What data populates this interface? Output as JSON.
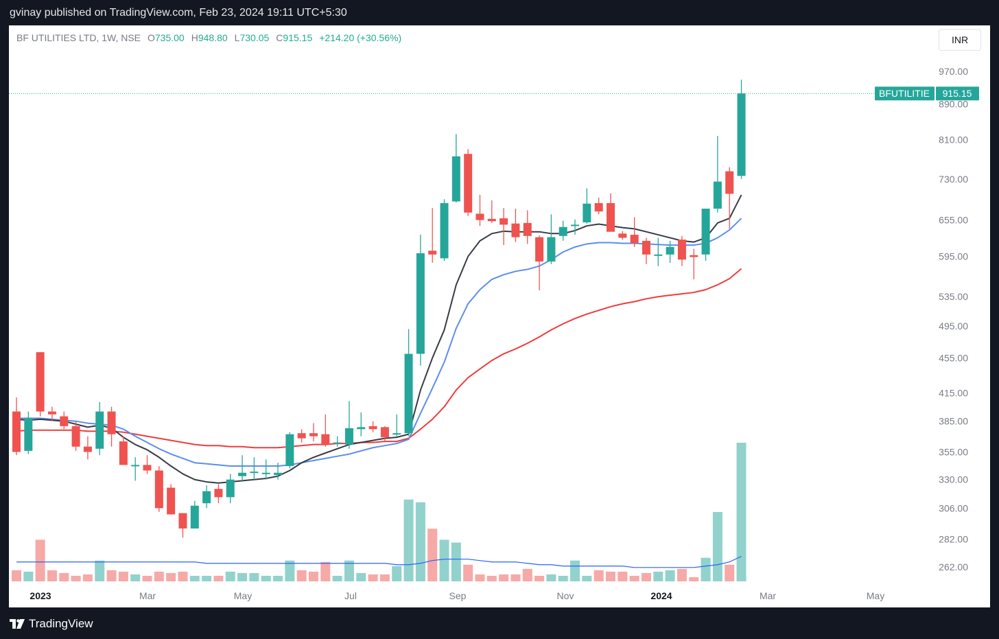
{
  "header": {
    "published": "gvinay published on TradingView.com, Feb 23, 2024 19:11 UTC+5:30"
  },
  "legend": {
    "symbol": "BF UTILITIES LTD, 1W, NSE",
    "o_label": "O",
    "o_value": "735.00",
    "h_label": "H",
    "h_value": "948.80",
    "l_label": "L",
    "l_value": "730.05",
    "c_label": "C",
    "c_value": "915.15",
    "change": "+214.20 (+30.56%)"
  },
  "currency_button": "INR",
  "price_tag": {
    "symbol": "BFUTILITIE",
    "value": "915.15"
  },
  "footer": {
    "brand": "TradingView"
  },
  "colors": {
    "up": "#26a69a",
    "down": "#ef5350",
    "ema_fast": "#363a45",
    "ema_mid": "#5b8def",
    "ema_slow": "#ef3b3b",
    "vol_ma": "#2962ff",
    "vol_up": "#92d2cc",
    "vol_down": "#f7a9a7"
  },
  "chart_data": {
    "type": "candlestick",
    "y_axis_ticks": [
      "970.00",
      "890.00",
      "810.00",
      "730.00",
      "655.00",
      "595.00",
      "535.00",
      "495.00",
      "455.00",
      "415.00",
      "385.00",
      "355.00",
      "330.00",
      "306.00",
      "282.00",
      "262.00"
    ],
    "y_scale": "log",
    "x_axis_labels": [
      "2023",
      "Mar",
      "May",
      "Jul",
      "Sep",
      "Nov",
      "2024",
      "Mar",
      "May"
    ],
    "x_axis_bold": [
      "2023",
      "2024"
    ],
    "candles": [
      {
        "o": 395,
        "h": 410,
        "l": 352,
        "c": 355
      },
      {
        "o": 356,
        "h": 395,
        "l": 353,
        "c": 388
      },
      {
        "o": 462,
        "h": 462,
        "l": 390,
        "c": 395
      },
      {
        "o": 395,
        "h": 400,
        "l": 385,
        "c": 392
      },
      {
        "o": 390,
        "h": 395,
        "l": 377,
        "c": 380
      },
      {
        "o": 380,
        "h": 385,
        "l": 356,
        "c": 360
      },
      {
        "o": 360,
        "h": 370,
        "l": 348,
        "c": 355
      },
      {
        "o": 358,
        "h": 405,
        "l": 352,
        "c": 395
      },
      {
        "o": 395,
        "h": 400,
        "l": 360,
        "c": 372
      },
      {
        "o": 365,
        "h": 370,
        "l": 343,
        "c": 343
      },
      {
        "o": 343,
        "h": 350,
        "l": 329,
        "c": 343
      },
      {
        "o": 343,
        "h": 352,
        "l": 335,
        "c": 338
      },
      {
        "o": 338,
        "h": 342,
        "l": 303,
        "c": 306
      },
      {
        "o": 323,
        "h": 326,
        "l": 301,
        "c": 301
      },
      {
        "o": 302,
        "h": 302,
        "l": 283,
        "c": 290
      },
      {
        "o": 290,
        "h": 312,
        "l": 290,
        "c": 308
      },
      {
        "o": 310,
        "h": 325,
        "l": 306,
        "c": 320
      },
      {
        "o": 322,
        "h": 326,
        "l": 310,
        "c": 315
      },
      {
        "o": 315,
        "h": 335,
        "l": 310,
        "c": 330
      },
      {
        "o": 333,
        "h": 352,
        "l": 328,
        "c": 336
      },
      {
        "o": 336,
        "h": 350,
        "l": 330,
        "c": 337
      },
      {
        "o": 336,
        "h": 348,
        "l": 330,
        "c": 336
      },
      {
        "o": 334,
        "h": 345,
        "l": 330,
        "c": 336
      },
      {
        "o": 342,
        "h": 374,
        "l": 340,
        "c": 372
      },
      {
        "o": 373,
        "h": 377,
        "l": 364,
        "c": 368
      },
      {
        "o": 373,
        "h": 383,
        "l": 365,
        "c": 370
      },
      {
        "o": 372,
        "h": 392,
        "l": 360,
        "c": 362
      },
      {
        "o": 364,
        "h": 370,
        "l": 360,
        "c": 364
      },
      {
        "o": 362,
        "h": 406,
        "l": 358,
        "c": 378
      },
      {
        "o": 377,
        "h": 394,
        "l": 370,
        "c": 379
      },
      {
        "o": 380,
        "h": 385,
        "l": 374,
        "c": 377
      },
      {
        "o": 379,
        "h": 380,
        "l": 365,
        "c": 369
      },
      {
        "o": 372,
        "h": 392,
        "l": 370,
        "c": 373
      },
      {
        "o": 373,
        "h": 491,
        "l": 370,
        "c": 460
      },
      {
        "o": 460,
        "h": 630,
        "l": 446,
        "c": 600
      },
      {
        "o": 604,
        "h": 676,
        "l": 585,
        "c": 598
      },
      {
        "o": 592,
        "h": 692,
        "l": 588,
        "c": 685
      },
      {
        "o": 688,
        "h": 822,
        "l": 686,
        "c": 775
      },
      {
        "o": 780,
        "h": 790,
        "l": 662,
        "c": 668
      },
      {
        "o": 666,
        "h": 700,
        "l": 645,
        "c": 655
      },
      {
        "o": 657,
        "h": 690,
        "l": 650,
        "c": 653
      },
      {
        "o": 658,
        "h": 676,
        "l": 613,
        "c": 647
      },
      {
        "o": 649,
        "h": 675,
        "l": 618,
        "c": 626
      },
      {
        "o": 650,
        "h": 672,
        "l": 615,
        "c": 628
      },
      {
        "o": 626,
        "h": 629,
        "l": 544,
        "c": 587
      },
      {
        "o": 587,
        "h": 665,
        "l": 583,
        "c": 626
      },
      {
        "o": 628,
        "h": 654,
        "l": 620,
        "c": 643
      },
      {
        "o": 645,
        "h": 656,
        "l": 630,
        "c": 647
      },
      {
        "o": 651,
        "h": 712,
        "l": 649,
        "c": 684
      },
      {
        "o": 685,
        "h": 695,
        "l": 665,
        "c": 670
      },
      {
        "o": 685,
        "h": 703,
        "l": 640,
        "c": 635
      },
      {
        "o": 632,
        "h": 636,
        "l": 622,
        "c": 625
      },
      {
        "o": 630,
        "h": 660,
        "l": 610,
        "c": 616
      },
      {
        "o": 620,
        "h": 625,
        "l": 583,
        "c": 598
      },
      {
        "o": 598,
        "h": 625,
        "l": 580,
        "c": 598
      },
      {
        "o": 598,
        "h": 620,
        "l": 585,
        "c": 610
      },
      {
        "o": 622,
        "h": 628,
        "l": 580,
        "c": 590
      },
      {
        "o": 597,
        "h": 607,
        "l": 560,
        "c": 594
      },
      {
        "o": 598,
        "h": 672,
        "l": 588,
        "c": 675
      },
      {
        "o": 675,
        "h": 818,
        "l": 668,
        "c": 725
      },
      {
        "o": 745,
        "h": 753,
        "l": 640,
        "c": 702
      },
      {
        "o": 736,
        "h": 949,
        "l": 730,
        "c": 915
      }
    ],
    "ema_fast": [
      387,
      386,
      387,
      386,
      385,
      382,
      379,
      381,
      378,
      369,
      362,
      357,
      350,
      342,
      335,
      330,
      328,
      327,
      328,
      329,
      330,
      331,
      333,
      338,
      345,
      350,
      354,
      358,
      362,
      364,
      366,
      368,
      369,
      372,
      418,
      455,
      490,
      552,
      595,
      620,
      632,
      636,
      635,
      635,
      635,
      632,
      632,
      637,
      645,
      648,
      645,
      642,
      640,
      635,
      630,
      625,
      620,
      618,
      625,
      650,
      658,
      700
    ],
    "ema_mid": [
      388,
      388,
      388,
      387,
      386,
      385,
      383,
      382,
      381,
      377,
      370,
      364,
      358,
      353,
      349,
      345,
      344,
      343,
      342,
      342,
      342,
      342,
      342,
      343,
      345,
      347,
      349,
      351,
      353,
      356,
      359,
      361,
      363,
      367,
      393,
      420,
      450,
      492,
      525,
      545,
      560,
      567,
      572,
      575,
      580,
      590,
      602,
      610,
      615,
      617,
      617,
      616,
      616,
      615,
      614,
      613,
      613,
      613,
      616,
      625,
      638,
      658
    ],
    "ema_slow": [
      375,
      376,
      376,
      376,
      376,
      376,
      375,
      375,
      375,
      374,
      372,
      370,
      368,
      366,
      364,
      362,
      361,
      361,
      360,
      360,
      359,
      359,
      359,
      360,
      361,
      362,
      362,
      363,
      363,
      364,
      364,
      365,
      365,
      368,
      377,
      387,
      400,
      418,
      432,
      442,
      452,
      460,
      466,
      473,
      481,
      490,
      498,
      505,
      511,
      516,
      521,
      525,
      528,
      532,
      535,
      537,
      539,
      541,
      545,
      552,
      561,
      576
    ],
    "volume_relative": [
      0.08,
      0.07,
      0.3,
      0.08,
      0.06,
      0.04,
      0.05,
      0.15,
      0.08,
      0.07,
      0.05,
      0.04,
      0.07,
      0.06,
      0.07,
      0.04,
      0.04,
      0.04,
      0.07,
      0.06,
      0.06,
      0.04,
      0.04,
      0.15,
      0.08,
      0.07,
      0.14,
      0.04,
      0.15,
      0.06,
      0.05,
      0.05,
      0.11,
      0.59,
      0.57,
      0.38,
      0.3,
      0.28,
      0.12,
      0.05,
      0.04,
      0.05,
      0.05,
      0.09,
      0.04,
      0.05,
      0.04,
      0.15,
      0.04,
      0.08,
      0.07,
      0.07,
      0.04,
      0.06,
      0.07,
      0.08,
      0.09,
      0.03,
      0.17,
      0.5,
      0.12,
      1.0
    ],
    "volume_ma_relative": [
      0.14,
      0.14,
      0.14,
      0.14,
      0.14,
      0.14,
      0.14,
      0.14,
      0.14,
      0.14,
      0.14,
      0.14,
      0.14,
      0.14,
      0.14,
      0.14,
      0.13,
      0.13,
      0.13,
      0.13,
      0.13,
      0.13,
      0.13,
      0.13,
      0.13,
      0.13,
      0.13,
      0.13,
      0.13,
      0.13,
      0.13,
      0.13,
      0.12,
      0.12,
      0.13,
      0.15,
      0.16,
      0.16,
      0.16,
      0.15,
      0.14,
      0.14,
      0.14,
      0.13,
      0.12,
      0.12,
      0.11,
      0.11,
      0.11,
      0.11,
      0.11,
      0.11,
      0.1,
      0.1,
      0.1,
      0.1,
      0.1,
      0.1,
      0.11,
      0.12,
      0.14,
      0.18
    ]
  }
}
